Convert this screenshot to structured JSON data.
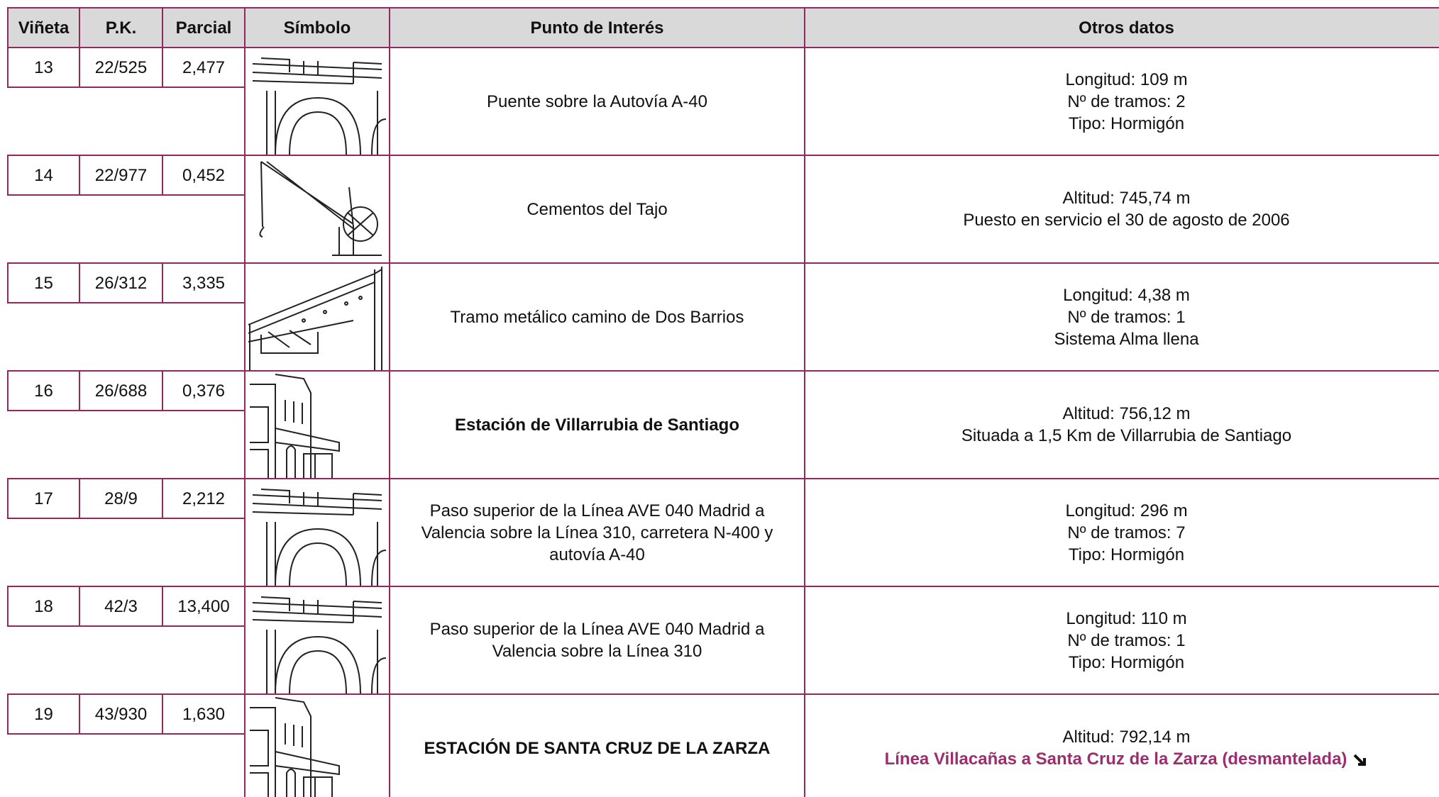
{
  "header": [
    "Viñeta",
    "P.K.",
    "Parcial",
    "Símbolo",
    "Punto de Interés",
    "Otros datos"
  ],
  "rows": [
    {
      "vineta": "13",
      "pk": "22/525",
      "parcial": "2,477",
      "punto": "Puente sobre la Autovía A-40",
      "otros": [
        "Longitud: 109 m",
        "Nº de tramos: 2",
        "Tipo: Hormigón"
      ]
    },
    {
      "vineta": "14",
      "pk": "22/977",
      "parcial": "0,452",
      "punto": "Cementos del Tajo",
      "otros": [
        "Altitud: 745,74 m",
        "Puesto en servicio el 30 de agosto de 2006"
      ]
    },
    {
      "vineta": "15",
      "pk": "26/312",
      "parcial": "3,335",
      "punto": "Tramo metálico camino de Dos Barrios",
      "otros": [
        "Longitud: 4,38 m",
        "Nº de tramos: 1",
        "Sistema Alma llena"
      ]
    },
    {
      "vineta": "16",
      "pk": "26/688",
      "parcial": "0,376",
      "punto": "Estación de Villarrubia de Santiago",
      "otros": [
        "Altitud: 756,12 m",
        "Situada a 1,5 Km de Villarrubia de Santiago"
      ]
    },
    {
      "vineta": "17",
      "pk": "28/9",
      "parcial": "2,212",
      "punto": "Paso superior de la Línea AVE 040 Madrid a Valencia sobre la Línea 310, carretera N-400 y autovía A-40",
      "otros": [
        "Longitud: 296 m",
        "Nº de tramos: 7",
        "Tipo: Hormigón"
      ]
    },
    {
      "vineta": "18",
      "pk": "42/3",
      "parcial": "13,400",
      "punto": "Paso superior de la Línea AVE 040 Madrid a Valencia sobre la Línea 310",
      "otros": [
        "Longitud: 110 m",
        "Nº de tramos: 1",
        "Tipo: Hormigón"
      ]
    },
    {
      "vineta": "19",
      "pk": "43/930",
      "parcial": "1,630",
      "punto": "ESTACIÓN DE SANTA CRUZ DE LA ZARZA",
      "otros": [
        "Altitud: 792,14 m"
      ],
      "link": "Línea Villacañas a Santa Cruz de la Zarza (desmantelada)"
    }
  ]
}
